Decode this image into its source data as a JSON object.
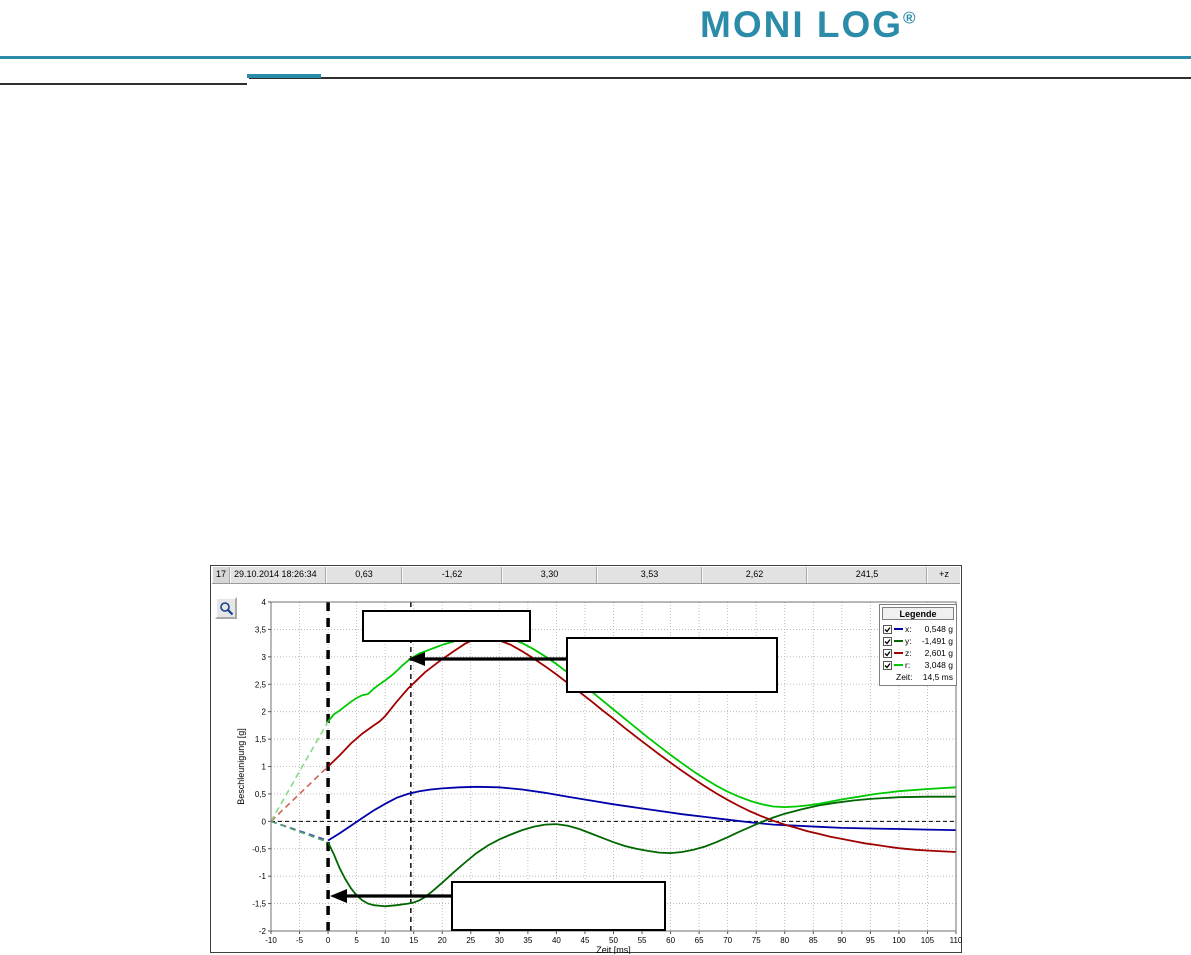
{
  "header": {
    "logo_text": "MONI LOG",
    "logo_reg_mark": "®",
    "accent_color": "#2b8ca9"
  },
  "chart_window": {
    "info_bar_cells": [
      "17",
      "29.10.2014 18:26:34",
      "0,63",
      "-1,62",
      "3,30",
      "3,53",
      "2,62",
      "241,5",
      "+z"
    ],
    "legend": {
      "title": "Legende",
      "rows": [
        {
          "label": "x:",
          "value": "0,548 g",
          "color": "#0000a8",
          "checked": true
        },
        {
          "label": "y:",
          "value": "-1,491 g",
          "color": "#006600",
          "checked": true
        },
        {
          "label": "z:",
          "value": "2,601 g",
          "color": "#a00000",
          "checked": true
        },
        {
          "label": "r:",
          "value": "3,048 g",
          "color": "#00c800",
          "checked": true
        }
      ],
      "time_label": "Zeit:",
      "time_value": "14,5 ms"
    }
  },
  "chart_data": {
    "type": "line",
    "title": "",
    "xlabel": "Zeit [ms]",
    "ylabel": "Beschleunigung [g]",
    "xlim": [
      -10,
      110
    ],
    "ylim": [
      -2,
      4
    ],
    "grid": true,
    "legend_position": "top-right",
    "x_ticks": [
      -10,
      -5,
      0,
      5,
      10,
      15,
      20,
      25,
      30,
      35,
      40,
      45,
      50,
      55,
      60,
      65,
      70,
      75,
      80,
      85,
      90,
      95,
      100,
      105,
      110
    ],
    "x_tick_labels": [
      "-10",
      "-5",
      "0",
      "5",
      "10",
      "15",
      "20",
      "25",
      "30",
      "35",
      "40",
      "45",
      "50",
      "55",
      "60",
      "65",
      "70",
      "75",
      "80",
      "85",
      "90",
      "95",
      "100",
      "105",
      "110"
    ],
    "y_ticks": [
      4,
      3.5,
      3,
      2.5,
      2,
      1.5,
      1,
      0.5,
      0,
      -0.5,
      -1,
      -1.5,
      -2
    ],
    "y_tick_labels": [
      "4",
      "3,5",
      "3",
      "2,5",
      "2",
      "1,5",
      "1",
      "0,5",
      "0",
      "-0,5",
      "-1",
      "-1,5",
      "-2"
    ],
    "zero_line": true,
    "marker_lines": [
      {
        "t": 0,
        "style": "thick"
      },
      {
        "t": 14.5,
        "style": "thin"
      }
    ],
    "values_at_marker": {
      "time_ms": 14.5,
      "x": 0.548,
      "y": -1.491,
      "z": 2.601,
      "r": 3.048
    },
    "series": [
      {
        "name": "x",
        "color": "#0000a8",
        "lead_color": "#5050b8",
        "points": [
          [
            -10,
            0
          ],
          [
            0,
            -0.35
          ],
          [
            2,
            -0.22
          ],
          [
            4,
            -0.08
          ],
          [
            6,
            0.06
          ],
          [
            8,
            0.2
          ],
          [
            10,
            0.32
          ],
          [
            12,
            0.43
          ],
          [
            14,
            0.5
          ],
          [
            16,
            0.55
          ],
          [
            18,
            0.58
          ],
          [
            20,
            0.6
          ],
          [
            23,
            0.62
          ],
          [
            26,
            0.63
          ],
          [
            30,
            0.62
          ],
          [
            34,
            0.58
          ],
          [
            38,
            0.52
          ],
          [
            42,
            0.45
          ],
          [
            46,
            0.38
          ],
          [
            50,
            0.31
          ],
          [
            54,
            0.25
          ],
          [
            58,
            0.19
          ],
          [
            62,
            0.13
          ],
          [
            66,
            0.08
          ],
          [
            70,
            0.03
          ],
          [
            74,
            -0.02
          ],
          [
            78,
            -0.06
          ],
          [
            82,
            -0.08
          ],
          [
            86,
            -0.1
          ],
          [
            90,
            -0.12
          ],
          [
            95,
            -0.13
          ],
          [
            100,
            -0.14
          ],
          [
            105,
            -0.15
          ],
          [
            110,
            -0.16
          ]
        ]
      },
      {
        "name": "y",
        "color": "#006600",
        "lead_color": "#4d9e6b",
        "points": [
          [
            -10,
            0
          ],
          [
            0,
            -0.38
          ],
          [
            1,
            -0.6
          ],
          [
            2,
            -0.85
          ],
          [
            3,
            -1.05
          ],
          [
            4,
            -1.22
          ],
          [
            5,
            -1.35
          ],
          [
            6,
            -1.44
          ],
          [
            7,
            -1.5
          ],
          [
            8,
            -1.53
          ],
          [
            10,
            -1.55
          ],
          [
            12,
            -1.53
          ],
          [
            14,
            -1.5
          ],
          [
            15,
            -1.48
          ],
          [
            16,
            -1.44
          ],
          [
            17,
            -1.38
          ],
          [
            18,
            -1.3
          ],
          [
            20,
            -1.12
          ],
          [
            22,
            -0.93
          ],
          [
            24,
            -0.75
          ],
          [
            26,
            -0.58
          ],
          [
            28,
            -0.44
          ],
          [
            30,
            -0.33
          ],
          [
            32,
            -0.24
          ],
          [
            34,
            -0.16
          ],
          [
            36,
            -0.1
          ],
          [
            38,
            -0.06
          ],
          [
            40,
            -0.05
          ],
          [
            42,
            -0.08
          ],
          [
            44,
            -0.14
          ],
          [
            46,
            -0.22
          ],
          [
            48,
            -0.3
          ],
          [
            50,
            -0.38
          ],
          [
            52,
            -0.45
          ],
          [
            54,
            -0.5
          ],
          [
            56,
            -0.54
          ],
          [
            58,
            -0.57
          ],
          [
            60,
            -0.58
          ],
          [
            62,
            -0.56
          ],
          [
            64,
            -0.52
          ],
          [
            66,
            -0.46
          ],
          [
            68,
            -0.38
          ],
          [
            70,
            -0.29
          ],
          [
            72,
            -0.19
          ],
          [
            74,
            -0.1
          ],
          [
            76,
            -0.01
          ],
          [
            78,
            0.07
          ],
          [
            80,
            0.14
          ],
          [
            83,
            0.22
          ],
          [
            86,
            0.29
          ],
          [
            89,
            0.34
          ],
          [
            92,
            0.38
          ],
          [
            95,
            0.41
          ],
          [
            100,
            0.44
          ],
          [
            105,
            0.45
          ],
          [
            110,
            0.45
          ]
        ]
      },
      {
        "name": "z",
        "color": "#a00000",
        "lead_color": "#cc6655",
        "points": [
          [
            -10,
            0
          ],
          [
            0,
            1.0
          ],
          [
            2,
            1.2
          ],
          [
            4,
            1.42
          ],
          [
            6,
            1.6
          ],
          [
            8,
            1.75
          ],
          [
            9,
            1.82
          ],
          [
            10,
            1.92
          ],
          [
            11,
            2.05
          ],
          [
            12,
            2.18
          ],
          [
            13,
            2.3
          ],
          [
            14,
            2.42
          ],
          [
            15,
            2.52
          ],
          [
            16,
            2.62
          ],
          [
            17,
            2.72
          ],
          [
            18,
            2.8
          ],
          [
            19,
            2.88
          ],
          [
            20,
            2.96
          ],
          [
            21,
            3.03
          ],
          [
            22,
            3.1
          ],
          [
            23,
            3.17
          ],
          [
            24,
            3.24
          ],
          [
            25,
            3.29
          ],
          [
            26,
            3.33
          ],
          [
            27,
            3.35
          ],
          [
            28,
            3.35
          ],
          [
            29,
            3.33
          ],
          [
            30,
            3.3
          ],
          [
            32,
            3.22
          ],
          [
            34,
            3.1
          ],
          [
            36,
            2.97
          ],
          [
            38,
            2.83
          ],
          [
            40,
            2.68
          ],
          [
            42,
            2.52
          ],
          [
            44,
            2.36
          ],
          [
            46,
            2.2
          ],
          [
            48,
            2.03
          ],
          [
            50,
            1.87
          ],
          [
            52,
            1.7
          ],
          [
            54,
            1.54
          ],
          [
            56,
            1.38
          ],
          [
            58,
            1.22
          ],
          [
            60,
            1.07
          ],
          [
            62,
            0.92
          ],
          [
            64,
            0.78
          ],
          [
            66,
            0.64
          ],
          [
            68,
            0.51
          ],
          [
            70,
            0.39
          ],
          [
            72,
            0.28
          ],
          [
            74,
            0.18
          ],
          [
            76,
            0.09
          ],
          [
            78,
            0.01
          ],
          [
            80,
            -0.06
          ],
          [
            82,
            -0.12
          ],
          [
            84,
            -0.18
          ],
          [
            86,
            -0.23
          ],
          [
            88,
            -0.28
          ],
          [
            90,
            -0.32
          ],
          [
            92,
            -0.36
          ],
          [
            94,
            -0.4
          ],
          [
            96,
            -0.43
          ],
          [
            98,
            -0.46
          ],
          [
            100,
            -0.49
          ],
          [
            103,
            -0.52
          ],
          [
            106,
            -0.54
          ],
          [
            110,
            -0.56
          ]
        ]
      },
      {
        "name": "r",
        "color": "#00c800",
        "lead_color": "#86d986",
        "points": [
          [
            -10,
            0
          ],
          [
            0,
            1.82
          ],
          [
            1,
            1.95
          ],
          [
            2,
            2.02
          ],
          [
            3,
            2.1
          ],
          [
            4,
            2.18
          ],
          [
            5,
            2.25
          ],
          [
            6,
            2.3
          ],
          [
            7,
            2.32
          ],
          [
            8,
            2.42
          ],
          [
            9,
            2.5
          ],
          [
            10,
            2.57
          ],
          [
            11,
            2.65
          ],
          [
            12,
            2.74
          ],
          [
            13,
            2.84
          ],
          [
            14,
            2.93
          ],
          [
            15,
            3.0
          ],
          [
            16,
            3.06
          ],
          [
            17,
            3.1
          ],
          [
            18,
            3.14
          ],
          [
            19,
            3.18
          ],
          [
            20,
            3.22
          ],
          [
            22,
            3.28
          ],
          [
            24,
            3.33
          ],
          [
            26,
            3.37
          ],
          [
            28,
            3.39
          ],
          [
            30,
            3.38
          ],
          [
            32,
            3.33
          ],
          [
            34,
            3.25
          ],
          [
            36,
            3.14
          ],
          [
            38,
            3.01
          ],
          [
            40,
            2.87
          ],
          [
            42,
            2.71
          ],
          [
            44,
            2.55
          ],
          [
            46,
            2.38
          ],
          [
            48,
            2.21
          ],
          [
            50,
            2.04
          ],
          [
            52,
            1.87
          ],
          [
            54,
            1.7
          ],
          [
            56,
            1.53
          ],
          [
            58,
            1.37
          ],
          [
            60,
            1.21
          ],
          [
            62,
            1.06
          ],
          [
            64,
            0.91
          ],
          [
            66,
            0.78
          ],
          [
            68,
            0.65
          ],
          [
            70,
            0.54
          ],
          [
            72,
            0.45
          ],
          [
            74,
            0.37
          ],
          [
            76,
            0.31
          ],
          [
            78,
            0.27
          ],
          [
            80,
            0.26
          ],
          [
            82,
            0.27
          ],
          [
            84,
            0.29
          ],
          [
            86,
            0.32
          ],
          [
            88,
            0.36
          ],
          [
            90,
            0.4
          ],
          [
            93,
            0.45
          ],
          [
            96,
            0.5
          ],
          [
            100,
            0.55
          ],
          [
            105,
            0.59
          ],
          [
            110,
            0.62
          ]
        ]
      }
    ]
  }
}
